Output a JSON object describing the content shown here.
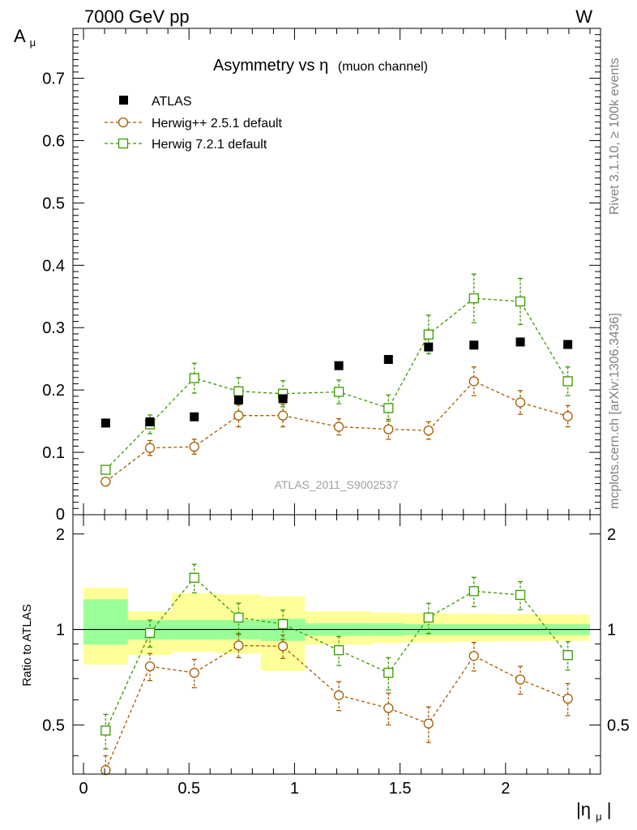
{
  "header": {
    "left": "7000 GeV pp",
    "right": "W"
  },
  "side_labels": {
    "rivet": "Rivet 3.1.10, ≥ 100k events",
    "mcplots": "mcplots.cern.ch [arXiv:1306.3436]"
  },
  "watermark": "ATLAS_2011_S9002537",
  "colors": {
    "atlas": "#000000",
    "herwigpp": "#a65a00",
    "herwig7": "#3a9a00",
    "band_outer": "#ffff99",
    "band_inner": "#99ff99"
  },
  "chart_data": [
    {
      "type": "scatter",
      "title": "Asymmetry vs",
      "title_symbol": "η",
      "title_suffix": "(muon channel)",
      "ylabel": "A",
      "ylabel_sub": "μ",
      "xlim": [
        -0.05,
        2.45
      ],
      "ylim": [
        0,
        0.78
      ],
      "y_ticks": [
        0.1,
        0.2,
        0.3,
        0.4,
        0.5,
        0.6,
        0.7
      ],
      "y_tick_labels": [
        "0.1",
        "0.2",
        "0.3",
        "0.4",
        "0.5",
        "0.6",
        "0.7"
      ],
      "y_axis_min_label": "0",
      "legend_position": "top-left",
      "x": [
        0.105,
        0.315,
        0.525,
        0.735,
        0.945,
        1.21,
        1.445,
        1.635,
        1.85,
        2.07,
        2.295
      ],
      "series": [
        {
          "name": "ATLAS",
          "marker": "filled-square",
          "values": [
            0.147,
            0.149,
            0.157,
            0.184,
            0.186,
            0.239,
            0.249,
            0.269,
            0.272,
            0.277,
            0.273
          ]
        },
        {
          "name": "Herwig++ 2.5.1 default",
          "marker": "open-circle",
          "values": [
            0.053,
            0.107,
            0.109,
            0.159,
            0.159,
            0.141,
            0.137,
            0.135,
            0.214,
            0.18,
            0.158
          ],
          "errors": [
            0.005,
            0.012,
            0.012,
            0.018,
            0.018,
            0.013,
            0.016,
            0.014,
            0.023,
            0.019,
            0.017
          ]
        },
        {
          "name": "Herwig 7.2.1 default",
          "marker": "open-square",
          "values": [
            0.072,
            0.145,
            0.219,
            0.198,
            0.194,
            0.197,
            0.171,
            0.289,
            0.347,
            0.342,
            0.214
          ],
          "errors": [
            0.006,
            0.015,
            0.024,
            0.022,
            0.021,
            0.019,
            0.021,
            0.031,
            0.039,
            0.037,
            0.023
          ]
        }
      ]
    },
    {
      "type": "scatter",
      "ylabel": "Ratio to ATLAS",
      "xlabel": "|η",
      "xlabel_sub": "μ",
      "xlabel_end": "|",
      "xlim": [
        -0.05,
        2.45
      ],
      "ylim": [
        0.35,
        2.3
      ],
      "x_ticks": [
        0,
        0.5,
        1,
        1.5,
        2
      ],
      "x_tick_labels": [
        "0",
        "0.5",
        "1",
        "1.5",
        "2"
      ],
      "y_ticks": [
        0.5,
        1,
        2
      ],
      "y_tick_labels": [
        "0.5",
        "1",
        "2"
      ],
      "reference_line": 1,
      "bands": [
        {
          "x0": 0.0,
          "x1": 0.21,
          "outer": [
            0.775,
            1.355
          ],
          "inner": [
            0.895,
            1.245
          ]
        },
        {
          "x0": 0.21,
          "x1": 0.42,
          "outer": [
            0.83,
            1.14
          ],
          "inner": [
            0.93,
            1.07
          ]
        },
        {
          "x0": 0.42,
          "x1": 0.63,
          "outer": [
            0.85,
            1.3
          ],
          "inner": [
            0.93,
            1.07
          ]
        },
        {
          "x0": 0.63,
          "x1": 0.84,
          "outer": [
            0.84,
            1.29
          ],
          "inner": [
            0.93,
            1.07
          ]
        },
        {
          "x0": 0.84,
          "x1": 1.05,
          "outer": [
            0.74,
            1.27
          ],
          "inner": [
            0.92,
            1.08
          ]
        },
        {
          "x0": 1.05,
          "x1": 1.37,
          "outer": [
            0.895,
            1.14
          ],
          "inner": [
            0.955,
            1.045
          ]
        },
        {
          "x0": 1.37,
          "x1": 1.52,
          "outer": [
            0.905,
            1.13
          ],
          "inner": [
            0.955,
            1.045
          ]
        },
        {
          "x0": 1.52,
          "x1": 1.74,
          "outer": [
            0.91,
            1.125
          ],
          "inner": [
            0.96,
            1.04
          ]
        },
        {
          "x0": 1.74,
          "x1": 1.96,
          "outer": [
            0.915,
            1.12
          ],
          "inner": [
            0.96,
            1.04
          ]
        },
        {
          "x0": 1.96,
          "x1": 2.18,
          "outer": [
            0.918,
            1.118
          ],
          "inner": [
            0.96,
            1.04
          ]
        },
        {
          "x0": 2.18,
          "x1": 2.4,
          "outer": [
            0.92,
            1.115
          ],
          "inner": [
            0.96,
            1.04
          ]
        }
      ],
      "x": [
        0.105,
        0.315,
        0.525,
        0.735,
        0.945,
        1.21,
        1.445,
        1.635,
        1.85,
        2.07,
        2.295
      ],
      "series": [
        {
          "name": "Herwig++ 2.5.1 default",
          "marker": "open-circle",
          "values": [
            0.36,
            0.765,
            0.73,
            0.89,
            0.885,
            0.62,
            0.565,
            0.505,
            0.825,
            0.695,
            0.605
          ],
          "errors": [
            0.04,
            0.075,
            0.075,
            0.075,
            0.075,
            0.065,
            0.065,
            0.065,
            0.085,
            0.07,
            0.07
          ]
        },
        {
          "name": "Herwig 7.2.1 default",
          "marker": "open-square",
          "values": [
            0.48,
            0.975,
            1.455,
            1.09,
            1.04,
            0.86,
            0.73,
            1.09,
            1.32,
            1.285,
            0.83
          ],
          "errors": [
            0.06,
            0.095,
            0.15,
            0.12,
            0.11,
            0.09,
            0.085,
            0.12,
            0.14,
            0.13,
            0.085
          ]
        }
      ]
    }
  ]
}
